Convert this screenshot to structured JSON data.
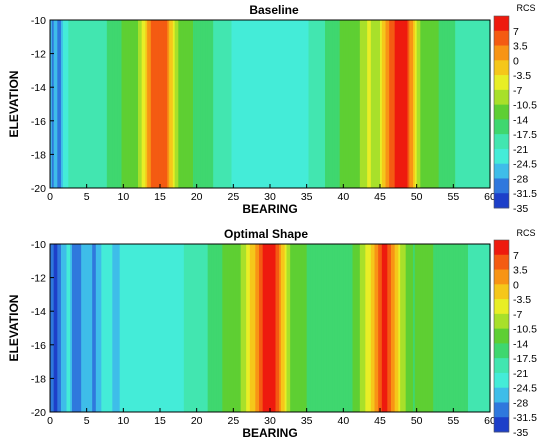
{
  "chart_data": [
    {
      "type": "heatmap",
      "title": "Baseline",
      "xlabel": "BEARING",
      "ylabel": "ELEVATION",
      "xlim": [
        0,
        60
      ],
      "ylim": [
        -20,
        -10
      ],
      "x_ticks": [
        "0",
        "5",
        "10",
        "15",
        "20",
        "25",
        "30",
        "35",
        "40",
        "45",
        "50",
        "55",
        "60"
      ],
      "y_ticks": [
        "-10",
        "-12",
        "-14",
        "-16",
        "-18",
        "-20"
      ],
      "colorbar": {
        "title": "RCS",
        "levels": [
          "7",
          "3.5",
          "0",
          "-3.5",
          "-7",
          "-10.5",
          "-14",
          "-17.5",
          "-21",
          "-24.5",
          "-28",
          "-31.5",
          "-35"
        ]
      },
      "bearing_profile": [
        {
          "bearing": 0.0,
          "rcs": -27
        },
        {
          "bearing": 0.4,
          "rcs": -32
        },
        {
          "bearing": 0.8,
          "rcs": -25
        },
        {
          "bearing": 1.2,
          "rcs": -33
        },
        {
          "bearing": 1.8,
          "rcs": -24
        },
        {
          "bearing": 3,
          "rcs": -22
        },
        {
          "bearing": 5,
          "rcs": -21
        },
        {
          "bearing": 7,
          "rcs": -20
        },
        {
          "bearing": 9,
          "rcs": -18
        },
        {
          "bearing": 10.5,
          "rcs": -13
        },
        {
          "bearing": 11.5,
          "rcs": -16
        },
        {
          "bearing": 12.5,
          "rcs": -9
        },
        {
          "bearing": 13.3,
          "rcs": -2
        },
        {
          "bearing": 14.0,
          "rcs": 4
        },
        {
          "bearing": 15.3,
          "rcs": 5
        },
        {
          "bearing": 16.2,
          "rcs": 0
        },
        {
          "bearing": 17.0,
          "rcs": -9
        },
        {
          "bearing": 18,
          "rcs": -15
        },
        {
          "bearing": 19,
          "rcs": -13
        },
        {
          "bearing": 20,
          "rcs": -18
        },
        {
          "bearing": 21,
          "rcs": -16
        },
        {
          "bearing": 22,
          "rcs": -19
        },
        {
          "bearing": 24,
          "rcs": -22
        },
        {
          "bearing": 26,
          "rcs": -24
        },
        {
          "bearing": 30,
          "rcs": -25
        },
        {
          "bearing": 34,
          "rcs": -24
        },
        {
          "bearing": 36,
          "rcs": -22
        },
        {
          "bearing": 38,
          "rcs": -18
        },
        {
          "bearing": 40,
          "rcs": -15
        },
        {
          "bearing": 42,
          "rcs": -13
        },
        {
          "bearing": 43.5,
          "rcs": -8
        },
        {
          "bearing": 44.5,
          "rcs": -12
        },
        {
          "bearing": 45.5,
          "rcs": -4
        },
        {
          "bearing": 46.5,
          "rcs": 3
        },
        {
          "bearing": 47.3,
          "rcs": 7
        },
        {
          "bearing": 48.5,
          "rcs": 7
        },
        {
          "bearing": 49.2,
          "rcs": 1
        },
        {
          "bearing": 50.0,
          "rcs": -9
        },
        {
          "bearing": 51,
          "rcs": -15
        },
        {
          "bearing": 52,
          "rcs": -12
        },
        {
          "bearing": 53,
          "rcs": -16
        },
        {
          "bearing": 55,
          "rcs": -19
        },
        {
          "bearing": 57,
          "rcs": -21
        },
        {
          "bearing": 60,
          "rcs": -22
        }
      ]
    },
    {
      "type": "heatmap",
      "title": "Optimal Shape",
      "xlabel": "BEARING",
      "ylabel": "ELEVATION",
      "xlim": [
        0,
        60
      ],
      "ylim": [
        -20,
        -10
      ],
      "x_ticks": [
        "0",
        "5",
        "10",
        "15",
        "20",
        "25",
        "30",
        "35",
        "40",
        "45",
        "50",
        "55",
        "60"
      ],
      "y_ticks": [
        "-10",
        "-12",
        "-14",
        "-16",
        "-18",
        "-20"
      ],
      "colorbar": {
        "title": "RCS",
        "levels": [
          "7",
          "3.5",
          "0",
          "-3.5",
          "-7",
          "-10.5",
          "-14",
          "-17.5",
          "-21",
          "-24.5",
          "-28",
          "-31.5",
          "-35"
        ]
      },
      "bearing_profile": [
        {
          "bearing": 0.0,
          "rcs": -30
        },
        {
          "bearing": 0.5,
          "rcs": -34
        },
        {
          "bearing": 1.0,
          "rcs": -33
        },
        {
          "bearing": 1.8,
          "rcs": -28
        },
        {
          "bearing": 2.6,
          "rcs": -25
        },
        {
          "bearing": 3.2,
          "rcs": -32
        },
        {
          "bearing": 3.8,
          "rcs": -33
        },
        {
          "bearing": 4.5,
          "rcs": -26
        },
        {
          "bearing": 5.3,
          "rcs": -28
        },
        {
          "bearing": 6.0,
          "rcs": -31
        },
        {
          "bearing": 7,
          "rcs": -26
        },
        {
          "bearing": 8,
          "rcs": -25
        },
        {
          "bearing": 9.3,
          "rcs": -28
        },
        {
          "bearing": 10,
          "rcs": -24
        },
        {
          "bearing": 14,
          "rcs": -24
        },
        {
          "bearing": 18,
          "rcs": -23
        },
        {
          "bearing": 21,
          "rcs": -20
        },
        {
          "bearing": 23,
          "rcs": -17
        },
        {
          "bearing": 24.5,
          "rcs": -13
        },
        {
          "bearing": 25.5,
          "rcs": -15
        },
        {
          "bearing": 26.5,
          "rcs": -10
        },
        {
          "bearing": 27.5,
          "rcs": -4
        },
        {
          "bearing": 28.5,
          "rcs": 2
        },
        {
          "bearing": 29.3,
          "rcs": 7
        },
        {
          "bearing": 30.5,
          "rcs": 7
        },
        {
          "bearing": 31.3,
          "rcs": 1
        },
        {
          "bearing": 32.2,
          "rcs": -8
        },
        {
          "bearing": 33,
          "rcs": -14
        },
        {
          "bearing": 34,
          "rcs": -12
        },
        {
          "bearing": 35,
          "rcs": -16
        },
        {
          "bearing": 37,
          "rcs": -19
        },
        {
          "bearing": 40,
          "rcs": -18
        },
        {
          "bearing": 42,
          "rcs": -14
        },
        {
          "bearing": 43.3,
          "rcs": -7
        },
        {
          "bearing": 44.3,
          "rcs": -2
        },
        {
          "bearing": 45.0,
          "rcs": 5
        },
        {
          "bearing": 46.0,
          "rcs": 6
        },
        {
          "bearing": 46.8,
          "rcs": 0
        },
        {
          "bearing": 47.6,
          "rcs": -7
        },
        {
          "bearing": 48.5,
          "rcs": -13
        },
        {
          "bearing": 49.5,
          "rcs": -16
        },
        {
          "bearing": 51,
          "rcs": -14
        },
        {
          "bearing": 53,
          "rcs": -17
        },
        {
          "bearing": 56,
          "rcs": -19
        },
        {
          "bearing": 60,
          "rcs": -20
        }
      ]
    }
  ],
  "palette": [
    "#ee1a0e",
    "#f45b12",
    "#f89415",
    "#f5c71a",
    "#e8ee26",
    "#a8e02a",
    "#5ecf33",
    "#3fd76f",
    "#42e6b0",
    "#44ecd8",
    "#3ebde9",
    "#2f78dd",
    "#1d3fc9"
  ]
}
